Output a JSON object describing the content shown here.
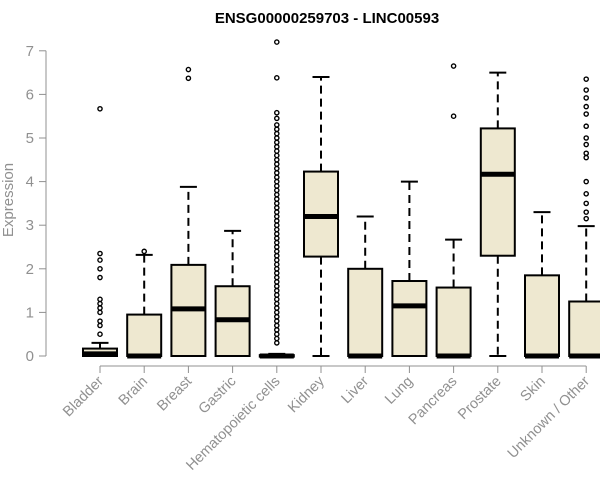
{
  "chart_data": {
    "type": "box",
    "title": "ENSG00000259703 - LINC00593",
    "ylabel": "Expression",
    "xlabel": "",
    "ylim": [
      0,
      7
    ],
    "yticks": [
      0,
      1,
      2,
      3,
      4,
      5,
      6,
      7
    ],
    "grid": false,
    "categories": [
      "Bladder",
      "Brain",
      "Breast",
      "Gastric",
      "Hematopoietic cells",
      "Kidney",
      "Liver",
      "Lung",
      "Pancreas",
      "Prostate",
      "Skin",
      "Unknown / Other"
    ],
    "boxes": [
      {
        "category": "Bladder",
        "whisker_low": 0,
        "q1": 0,
        "median": 0.05,
        "q3": 0.17,
        "whisker_high": 0.3,
        "outliers": [
          0.5,
          0.7,
          0.8,
          1.0,
          1.1,
          1.2,
          1.3,
          1.8,
          2.0,
          2.2,
          2.35,
          5.67
        ]
      },
      {
        "category": "Brain",
        "whisker_low": 0,
        "q1": 0,
        "median": 0,
        "q3": 0.95,
        "whisker_high": 2.32,
        "outliers": [
          2.4
        ]
      },
      {
        "category": "Breast",
        "whisker_low": 0,
        "q1": 0,
        "median": 1.08,
        "q3": 2.09,
        "whisker_high": 3.88,
        "outliers": [
          6.37,
          6.57
        ]
      },
      {
        "category": "Gastric",
        "whisker_low": 0,
        "q1": 0,
        "median": 0.83,
        "q3": 1.6,
        "whisker_high": 2.87,
        "outliers": []
      },
      {
        "category": "Hematopoietic cells",
        "whisker_low": 0,
        "q1": 0,
        "median": 0,
        "q3": 0.02,
        "whisker_high": 0.05,
        "outliers": [
          0.3,
          0.4,
          0.5,
          0.6,
          0.7,
          0.8,
          0.9,
          1.0,
          1.1,
          1.2,
          1.3,
          1.4,
          1.5,
          1.6,
          1.7,
          1.8,
          1.9,
          2.0,
          2.1,
          2.2,
          2.3,
          2.4,
          2.5,
          2.6,
          2.7,
          2.8,
          2.9,
          3.0,
          3.1,
          3.2,
          3.3,
          3.4,
          3.5,
          3.6,
          3.7,
          3.8,
          3.9,
          4.0,
          4.1,
          4.2,
          4.3,
          4.4,
          4.5,
          4.6,
          4.7,
          4.8,
          4.9,
          5.0,
          5.1,
          5.2,
          5.3,
          5.45,
          5.58,
          6.38,
          7.2
        ]
      },
      {
        "category": "Kidney",
        "whisker_low": 0,
        "q1": 2.28,
        "median": 3.2,
        "q3": 4.23,
        "whisker_high": 6.4,
        "outliers": []
      },
      {
        "category": "Liver",
        "whisker_low": 0,
        "q1": 0,
        "median": 0,
        "q3": 2.0,
        "whisker_high": 3.2,
        "outliers": []
      },
      {
        "category": "Lung",
        "whisker_low": 0,
        "q1": 0,
        "median": 1.15,
        "q3": 1.72,
        "whisker_high": 4.0,
        "outliers": []
      },
      {
        "category": "Pancreas",
        "whisker_low": 0,
        "q1": 0,
        "median": 0,
        "q3": 1.57,
        "whisker_high": 2.67,
        "outliers": [
          5.5,
          6.65
        ]
      },
      {
        "category": "Prostate",
        "whisker_low": 0,
        "q1": 2.3,
        "median": 4.17,
        "q3": 5.22,
        "whisker_high": 6.5,
        "outliers": []
      },
      {
        "category": "Skin",
        "whisker_low": 0,
        "q1": 0,
        "median": 0,
        "q3": 1.85,
        "whisker_high": 3.3,
        "outliers": []
      },
      {
        "category": "Unknown / Other",
        "whisker_low": 0,
        "q1": 0,
        "median": 0,
        "q3": 1.25,
        "whisker_high": 2.98,
        "outliers": [
          3.15,
          3.3,
          3.5,
          3.72,
          4.0,
          4.55,
          4.65,
          4.85,
          5.0,
          5.27,
          5.55,
          5.72,
          5.92,
          6.1,
          6.35
        ]
      }
    ],
    "colors": {
      "box_fill": "#EEE8D0",
      "box_stroke": "#000000",
      "axis": "#909090",
      "title": "#000000"
    }
  }
}
